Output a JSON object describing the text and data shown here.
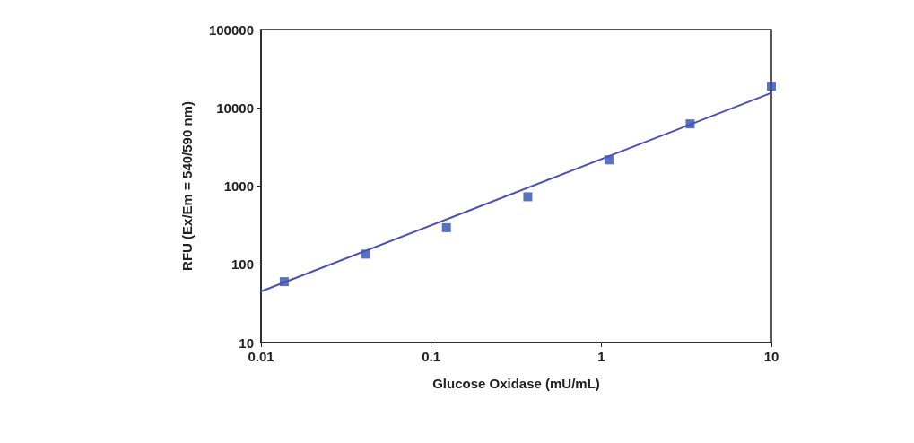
{
  "chart_data": {
    "type": "scatter",
    "xlabel": "Glucose Oxidase (mU/mL)",
    "ylabel": "RFU (Ex/Em = 540/590 nm)",
    "log": "xy",
    "marker": "square",
    "grid": false,
    "series": [
      {
        "color": "#2f4fb0",
        "x": [
          0.0137,
          0.0412,
          0.123,
          0.37,
          1.11,
          3.33,
          10
        ],
        "values": [
          60,
          135,
          294,
          730,
          2160,
          6240,
          18900
        ]
      },
      {
        "type": "line",
        "color": "#4a50b8",
        "marker": "none",
        "line_style": "solid",
        "x": [
          0.01,
          10
        ],
        "values": [
          45,
          15500
        ]
      }
    ],
    "xlim": [
      0.01,
      10
    ],
    "xticks": [
      0.01,
      0.1,
      1,
      10
    ],
    "ylim": [
      10,
      100000
    ],
    "yticks": [
      10,
      100,
      1000,
      10000,
      100000
    ]
  }
}
